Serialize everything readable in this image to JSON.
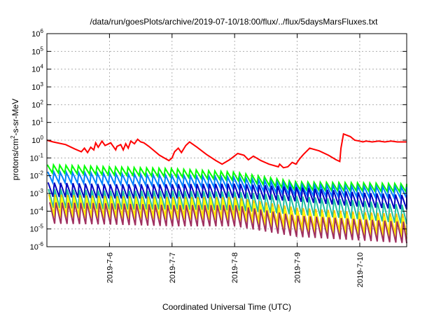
{
  "chart_data": {
    "type": "line",
    "title": "/data/run/goesPlots/archive/2019-07-10/18:00/flux/../flux/5daysMarsFluxes.txt",
    "xlabel": "Coordinated Universal Time (UTC)",
    "ylabel_prefix": "protons/cm",
    "ylabel_sup": "2",
    "ylabel_suffix": "-s-sr-MeV",
    "yscale": "log",
    "ylim_exponents": [
      -6,
      6
    ],
    "y_tick_labels": [
      {
        "base": "10",
        "exp": "6"
      },
      {
        "base": "10",
        "exp": "5"
      },
      {
        "base": "10",
        "exp": "4"
      },
      {
        "base": "10",
        "exp": "3"
      },
      {
        "base": "10",
        "exp": "2"
      },
      {
        "base": "10",
        "exp": "1"
      },
      {
        "base": "10",
        "exp": "0"
      },
      {
        "base": "10",
        "exp": "-1"
      },
      {
        "base": "10",
        "exp": "-2"
      },
      {
        "base": "10",
        "exp": "-3"
      },
      {
        "base": "10",
        "exp": "-4"
      },
      {
        "base": "10",
        "exp": "-5"
      },
      {
        "base": "10",
        "exp": "-6"
      }
    ],
    "xlim_days": [
      "2019-7-5 00:00",
      "2019-7-10 18:00"
    ],
    "x_tick_labels": [
      "2019-7-6",
      "2019-7-7",
      "2019-7-8",
      "2019-7-9",
      "2019-7-10"
    ],
    "grid": true,
    "legend": "none",
    "series": [
      {
        "color": "#ff0000",
        "sawtooth": false,
        "points": [
          [
            0.0,
            0.0
          ],
          [
            0.1,
            -0.1
          ],
          [
            0.3,
            -0.25
          ],
          [
            0.45,
            -0.5
          ],
          [
            0.55,
            -0.65
          ],
          [
            0.6,
            -0.45
          ],
          [
            0.65,
            -0.7
          ],
          [
            0.7,
            -0.4
          ],
          [
            0.75,
            -0.55
          ],
          [
            0.78,
            -0.15
          ],
          [
            0.82,
            -0.4
          ],
          [
            0.88,
            -0.05
          ],
          [
            0.93,
            -0.3
          ],
          [
            1.02,
            -0.15
          ],
          [
            1.06,
            -0.35
          ],
          [
            1.1,
            -0.55
          ],
          [
            1.12,
            -0.35
          ],
          [
            1.18,
            -0.25
          ],
          [
            1.22,
            -0.55
          ],
          [
            1.26,
            -0.2
          ],
          [
            1.3,
            -0.45
          ],
          [
            1.34,
            -0.05
          ],
          [
            1.4,
            -0.2
          ],
          [
            1.45,
            0.05
          ],
          [
            1.5,
            -0.1
          ],
          [
            1.55,
            -0.15
          ],
          [
            1.63,
            -0.35
          ],
          [
            1.8,
            -0.85
          ],
          [
            1.95,
            -1.15
          ],
          [
            2.0,
            -1.0
          ],
          [
            2.04,
            -0.65
          ],
          [
            2.1,
            -0.45
          ],
          [
            2.15,
            -0.7
          ],
          [
            2.22,
            -0.3
          ],
          [
            2.28,
            -0.1
          ],
          [
            2.4,
            -0.4
          ],
          [
            2.55,
            -0.8
          ],
          [
            2.7,
            -1.15
          ],
          [
            2.8,
            -1.35
          ],
          [
            2.92,
            -1.1
          ],
          [
            3.05,
            -0.75
          ],
          [
            3.15,
            -0.85
          ],
          [
            3.22,
            -1.1
          ],
          [
            3.3,
            -0.9
          ],
          [
            3.42,
            -1.15
          ],
          [
            3.55,
            -1.35
          ],
          [
            3.7,
            -1.5
          ],
          [
            3.72,
            -1.35
          ],
          [
            3.78,
            -1.55
          ],
          [
            3.85,
            -1.5
          ],
          [
            3.92,
            -1.25
          ],
          [
            3.98,
            -1.35
          ],
          [
            4.04,
            -1.05
          ],
          [
            4.1,
            -0.8
          ],
          [
            4.2,
            -0.45
          ],
          [
            4.35,
            -0.6
          ],
          [
            4.5,
            -0.85
          ],
          [
            4.62,
            -1.1
          ],
          [
            4.68,
            -1.2
          ],
          [
            4.7,
            -0.45
          ],
          [
            4.74,
            0.35
          ],
          [
            4.85,
            0.2
          ],
          [
            4.92,
            0.0
          ],
          [
            5.0,
            -0.05
          ],
          [
            5.05,
            -0.1
          ],
          [
            5.1,
            -0.05
          ],
          [
            5.2,
            -0.1
          ],
          [
            5.3,
            -0.05
          ],
          [
            5.4,
            -0.1
          ],
          [
            5.5,
            -0.05
          ],
          [
            5.6,
            -0.1
          ],
          [
            5.75,
            -0.1
          ]
        ]
      },
      {
        "color": "#00ff00",
        "sawtooth": true,
        "top": [
          -1.38,
          -1.5,
          -1.6,
          -1.8,
          -2.35,
          -2.4,
          -2.48
        ],
        "drop": 0.45
      },
      {
        "color": "#0080ff",
        "sawtooth": true,
        "top": [
          -1.78,
          -1.88,
          -1.98,
          -2.08,
          -2.5,
          -2.6,
          -2.65
        ],
        "drop": 0.6
      },
      {
        "color": "#0000c0",
        "sawtooth": true,
        "top": [
          -2.38,
          -2.48,
          -2.48,
          -2.45,
          -2.65,
          -2.95,
          -3.15
        ],
        "drop": 0.8
      },
      {
        "color": "#20c0a0",
        "sawtooth": true,
        "top": [
          -2.75,
          -2.85,
          -2.85,
          -2.9,
          -3.15,
          -3.4,
          -3.75
        ],
        "drop": 1.05
      },
      {
        "color": "#ffc000",
        "sawtooth": true,
        "top": [
          -3.05,
          -3.15,
          -3.2,
          -3.2,
          -3.8,
          -4.05,
          -4.2
        ],
        "drop": 1.15
      },
      {
        "color": "#ffff00",
        "sawtooth": true,
        "top": [
          -3.2,
          -3.25,
          -3.3,
          -3.35,
          -4.0,
          -4.2,
          -4.45
        ],
        "drop": 1.15
      },
      {
        "color": "#a03060",
        "sawtooth": true,
        "top": [
          -3.5,
          -3.55,
          -3.65,
          -3.65,
          -4.25,
          -4.45,
          -4.65
        ],
        "drop": 1.2
      }
    ]
  }
}
